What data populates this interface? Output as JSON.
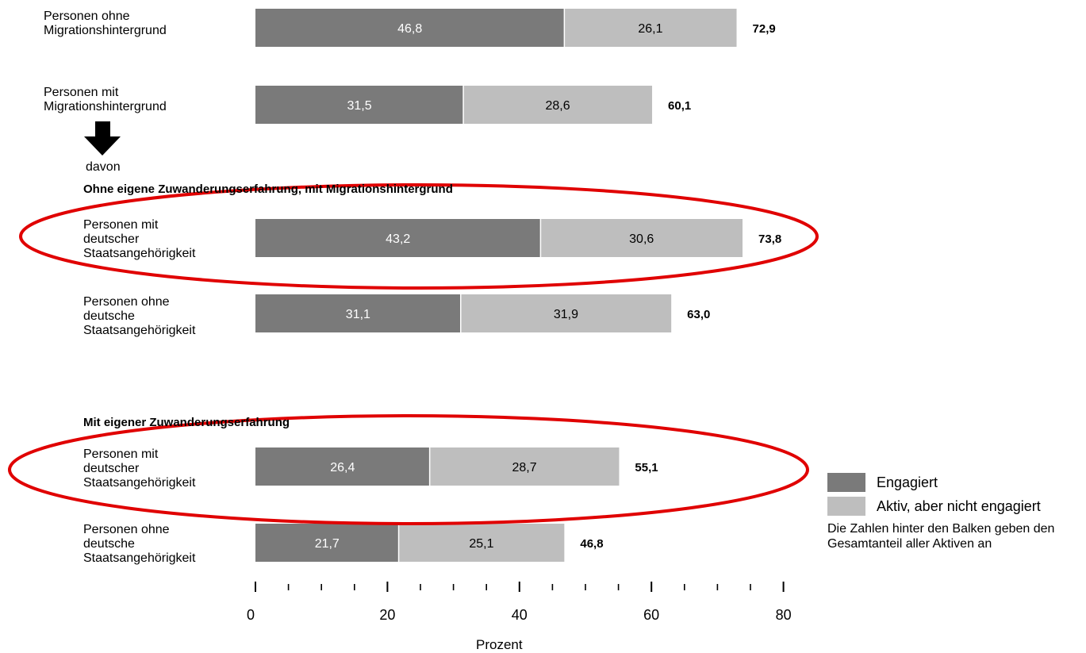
{
  "chart_data": {
    "type": "bar",
    "orientation": "horizontal",
    "stacked": true,
    "categories": [
      "Personen ohne\nMigrationshintergrund",
      "Personen mit\nMigrationshintergrund",
      "Personen mit\ndeutscher\nStaatsangehörigkeit",
      "Personen ohne\ndeutsche\nStaatsangehörigkeit",
      "Personen mit\ndeutscher\nStaatsangehörigkeit",
      "Personen ohne\ndeutsche\nStaatsangehörigkeit"
    ],
    "series": [
      {
        "name": "Engagiert",
        "color": "#7a7a7a",
        "values": [
          46.8,
          31.5,
          43.2,
          31.1,
          26.4,
          21.7
        ]
      },
      {
        "name": "Aktiv, aber nicht engagiert",
        "color": "#bebebe",
        "values": [
          26.1,
          28.6,
          30.6,
          31.9,
          28.7,
          25.1
        ]
      }
    ],
    "value_labels": [
      [
        "46,8",
        "31,5",
        "43,2",
        "31,1",
        "26,4",
        "21,7"
      ],
      [
        "26,1",
        "28,6",
        "30,6",
        "31,9",
        "28,7",
        "25,1"
      ]
    ],
    "totals": [
      "72,9",
      "60,1",
      "73,8",
      "63,0",
      "55,1",
      "46,8"
    ],
    "total_values": [
      72.9,
      60.1,
      73.8,
      63.0,
      55.1,
      46.8
    ],
    "section_titles": {
      "davon": "davon",
      "without_own_migration": "Ohne eigene Zuwanderungserfahrung, mit Migrationshintergrund",
      "with_own_migration": "Mit eigener Zuwanderungserfahrung"
    },
    "xlabel": "Prozent",
    "xlim": [
      0,
      80
    ],
    "xticks": [
      0,
      20,
      40,
      60,
      80
    ],
    "xtick_labels": [
      "0",
      "20",
      "40",
      "60",
      "80"
    ],
    "minor_tick_step": 5,
    "highlight_color": "#e00000",
    "highlighted_categories": [
      2,
      4
    ],
    "legend_placement": "right",
    "legend_note": "Die Zahlen hinter den Balken geben den Gesamtanteil aller Aktiven an"
  }
}
